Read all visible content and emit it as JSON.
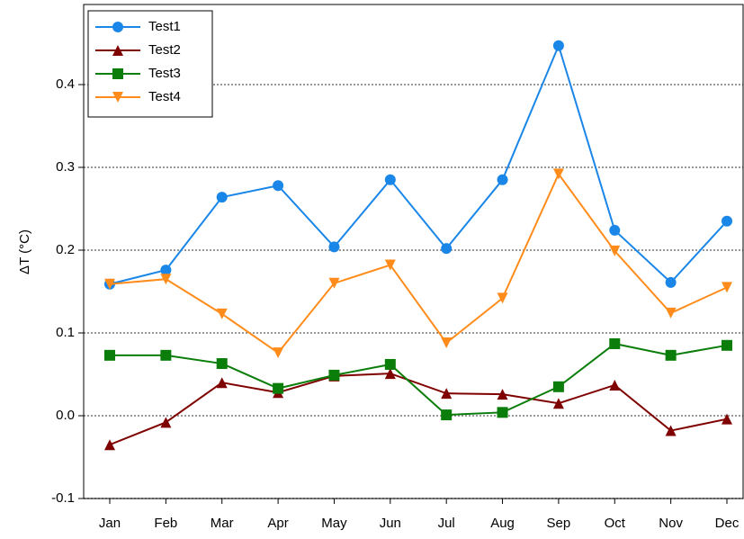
{
  "chart_data": {
    "type": "line",
    "ylabel": "ΔT (°C)",
    "categories": [
      "Jan",
      "Feb",
      "Mar",
      "Apr",
      "May",
      "Jun",
      "Jul",
      "Aug",
      "Sep",
      "Oct",
      "Nov",
      "Dec"
    ],
    "series": [
      {
        "name": "Test1",
        "color": "#1a86e8",
        "marker": "circle",
        "values": [
          0.159,
          0.176,
          0.264,
          0.278,
          0.204,
          0.285,
          0.202,
          0.285,
          0.447,
          0.224,
          0.161,
          0.235
        ]
      },
      {
        "name": "Test2",
        "color": "#7f0000",
        "marker": "triangle-up",
        "values": [
          -0.035,
          -0.008,
          0.04,
          0.028,
          0.048,
          0.051,
          0.027,
          0.026,
          0.015,
          0.037,
          -0.018,
          -0.004
        ]
      },
      {
        "name": "Test3",
        "color": "#0a7d0a",
        "marker": "square",
        "values": [
          0.073,
          0.073,
          0.063,
          0.033,
          0.049,
          0.062,
          0.001,
          0.004,
          0.035,
          0.087,
          0.073,
          0.085
        ]
      },
      {
        "name": "Test4",
        "color": "#ff8c1a",
        "marker": "triangle-down",
        "values": [
          0.159,
          0.165,
          0.123,
          0.076,
          0.16,
          0.182,
          0.088,
          0.142,
          0.292,
          0.199,
          0.124,
          0.155
        ]
      }
    ],
    "ylim": [
      -0.1,
      0.5
    ],
    "yticks": [
      -0.1,
      {
        "value": 0,
        "label": "0.0"
      },
      0.1,
      0.2,
      0.3,
      0.4
    ],
    "grid": true,
    "legend": "upper-left"
  }
}
